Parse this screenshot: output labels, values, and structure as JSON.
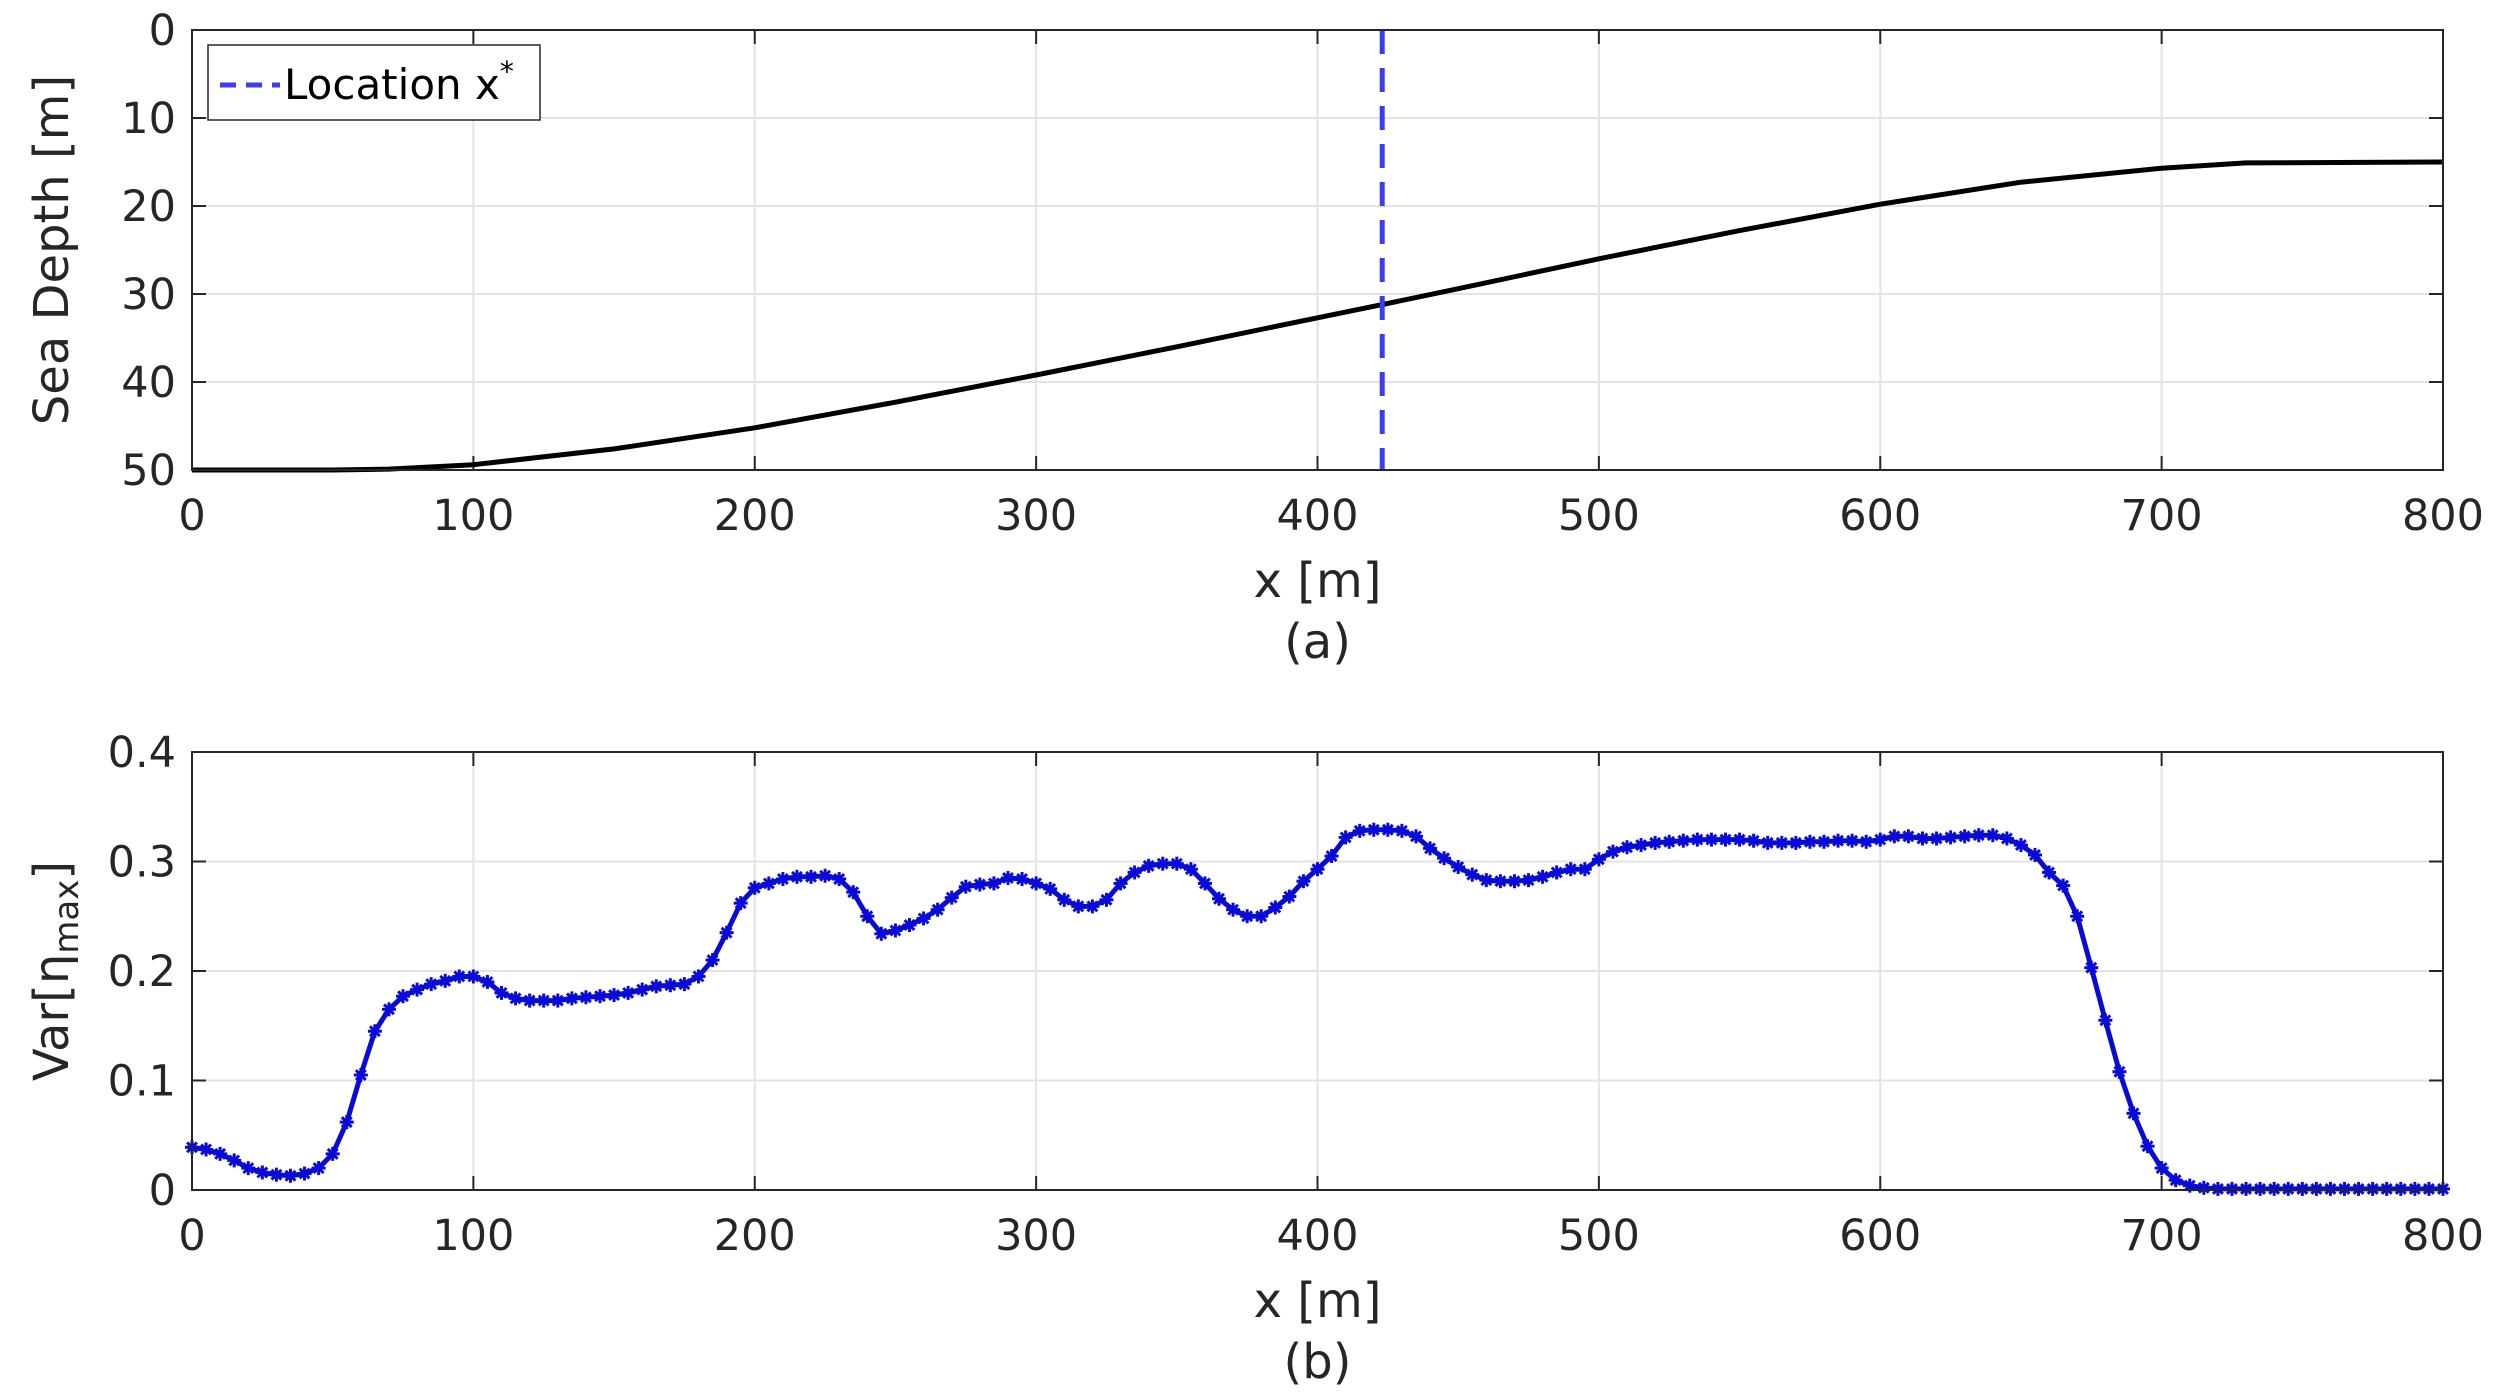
{
  "chart_data": [
    {
      "type": "line",
      "caption": "(a)",
      "xlabel": "x [m]",
      "ylabel": "Sea Depth [m]",
      "xlim": [
        0,
        800
      ],
      "ylim": [
        0,
        50
      ],
      "y_reversed": true,
      "grid": true,
      "xticks": [
        "0",
        "100",
        "200",
        "300",
        "400",
        "500",
        "600",
        "700",
        "800"
      ],
      "yticks": [
        "0",
        "10",
        "20",
        "30",
        "40",
        "50"
      ],
      "legend": {
        "placement": "top-left",
        "entries": [
          {
            "label": "Location x",
            "superscript": "*"
          }
        ]
      },
      "series": [
        {
          "color": "#000000",
          "x": [
            0,
            50,
            70,
            100,
            150,
            200,
            250,
            300,
            350,
            400,
            423,
            450,
            500,
            550,
            600,
            650,
            700,
            730,
            800
          ],
          "y": [
            50,
            50,
            49.9,
            49.4,
            47.6,
            45.2,
            42.3,
            39.2,
            36.0,
            32.7,
            31.2,
            29.4,
            26.0,
            22.8,
            19.8,
            17.3,
            15.7,
            15.1,
            15.0
          ]
        }
      ],
      "vline": {
        "label": "Location x*",
        "x": 423,
        "color": "#3c3cf0",
        "style": "dashed"
      }
    },
    {
      "type": "line",
      "caption": "(b)",
      "xlabel": "x [m]",
      "ylabel": "Var[η",
      "ylabel_sub": "max",
      "ylabel_close": "]",
      "xlim": [
        0,
        800
      ],
      "ylim": [
        0,
        0.4
      ],
      "grid": true,
      "xticks": [
        "0",
        "100",
        "200",
        "300",
        "400",
        "500",
        "600",
        "700",
        "800"
      ],
      "yticks": [
        "0",
        "0.1",
        "0.2",
        "0.3",
        "0.4"
      ],
      "series": [
        {
          "color": "#0a0ad8",
          "marker": "asterisk",
          "x": [
            0,
            5,
            10,
            15,
            20,
            25,
            30,
            35,
            40,
            45,
            50,
            55,
            60,
            65,
            70,
            75,
            80,
            85,
            90,
            95,
            100,
            105,
            110,
            115,
            120,
            125,
            130,
            135,
            140,
            145,
            150,
            155,
            160,
            165,
            170,
            175,
            180,
            185,
            190,
            195,
            200,
            205,
            210,
            215,
            220,
            225,
            230,
            235,
            240,
            245,
            250,
            255,
            260,
            265,
            270,
            275,
            280,
            285,
            290,
            295,
            300,
            305,
            310,
            315,
            320,
            325,
            330,
            335,
            340,
            345,
            350,
            355,
            360,
            365,
            370,
            375,
            380,
            385,
            390,
            395,
            400,
            405,
            410,
            415,
            420,
            425,
            430,
            435,
            440,
            445,
            450,
            455,
            460,
            465,
            470,
            475,
            480,
            485,
            490,
            495,
            500,
            505,
            510,
            515,
            520,
            525,
            530,
            535,
            540,
            545,
            550,
            555,
            560,
            565,
            570,
            575,
            580,
            585,
            590,
            595,
            600,
            605,
            610,
            615,
            620,
            625,
            630,
            635,
            640,
            645,
            650,
            655,
            660,
            665,
            670,
            675,
            680,
            685,
            690,
            695,
            700,
            705,
            710,
            715,
            720,
            725,
            730,
            735,
            740,
            745,
            750,
            755,
            760,
            765,
            770,
            775,
            780,
            785,
            790,
            795,
            800
          ],
          "y": [
            0.039,
            0.037,
            0.033,
            0.027,
            0.02,
            0.016,
            0.014,
            0.013,
            0.015,
            0.02,
            0.033,
            0.062,
            0.105,
            0.145,
            0.165,
            0.177,
            0.183,
            0.188,
            0.191,
            0.195,
            0.195,
            0.19,
            0.18,
            0.175,
            0.173,
            0.173,
            0.173,
            0.175,
            0.176,
            0.177,
            0.178,
            0.18,
            0.183,
            0.186,
            0.187,
            0.188,
            0.195,
            0.21,
            0.235,
            0.262,
            0.276,
            0.28,
            0.284,
            0.286,
            0.286,
            0.287,
            0.284,
            0.272,
            0.25,
            0.234,
            0.237,
            0.242,
            0.248,
            0.256,
            0.267,
            0.277,
            0.279,
            0.28,
            0.285,
            0.284,
            0.28,
            0.275,
            0.265,
            0.259,
            0.259,
            0.265,
            0.28,
            0.29,
            0.296,
            0.298,
            0.298,
            0.293,
            0.28,
            0.266,
            0.256,
            0.25,
            0.25,
            0.258,
            0.268,
            0.282,
            0.293,
            0.305,
            0.322,
            0.328,
            0.329,
            0.329,
            0.328,
            0.323,
            0.312,
            0.303,
            0.295,
            0.288,
            0.283,
            0.282,
            0.282,
            0.283,
            0.286,
            0.29,
            0.293,
            0.293,
            0.302,
            0.309,
            0.313,
            0.315,
            0.317,
            0.318,
            0.319,
            0.32,
            0.32,
            0.32,
            0.32,
            0.319,
            0.317,
            0.317,
            0.317,
            0.318,
            0.318,
            0.319,
            0.319,
            0.318,
            0.32,
            0.323,
            0.323,
            0.321,
            0.321,
            0.322,
            0.323,
            0.324,
            0.324,
            0.321,
            0.315,
            0.306,
            0.29,
            0.278,
            0.25,
            0.203,
            0.155,
            0.108,
            0.07,
            0.04,
            0.02,
            0.009,
            0.004,
            0.002,
            0.001,
            0.001,
            0.001,
            0.001,
            0.001,
            0.001,
            0.001,
            0.001,
            0.001,
            0.001,
            0.001,
            0.001,
            0.001,
            0.001,
            0.001,
            0.001,
            0.001
          ]
        }
      ]
    }
  ]
}
